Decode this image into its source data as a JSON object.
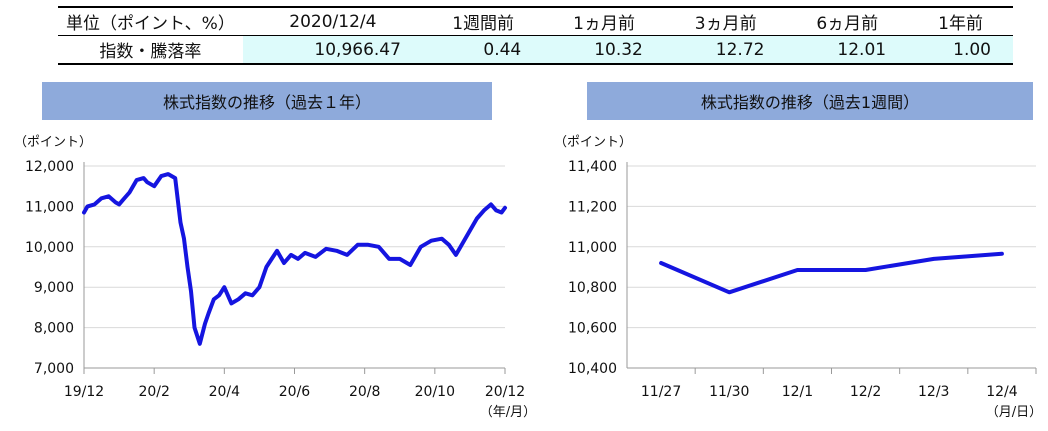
{
  "summary": {
    "headers": [
      "単位（ポイント、%）",
      "2020/12/4",
      "1週間前",
      "1ヵ月前",
      "3ヵ月前",
      "6ヵ月前",
      "1年前"
    ],
    "row_label": "指数・騰落率",
    "values": [
      "10,966.47",
      "0.44",
      "10.32",
      "12.72",
      "12.01",
      "1.00"
    ]
  },
  "left_panel": {
    "title": "株式指数の推移（過去１年）"
  },
  "right_panel": {
    "title": "株式指数の推移（過去1週間）"
  },
  "colors": {
    "line": "#1515e0",
    "title_bg": "#8eaadb",
    "highlight": "#ddfbfb"
  },
  "chart_data": [
    {
      "type": "line",
      "title": "株式指数の推移（過去１年）",
      "ylabel": "（ポイント）",
      "xlabel": "（年/月）",
      "ylim": [
        7000,
        12000
      ],
      "yticks": [
        7000,
        8000,
        9000,
        10000,
        11000,
        12000
      ],
      "ytick_labels": [
        "7,000",
        "8,000",
        "9,000",
        "10,000",
        "11,000",
        "12,000"
      ],
      "xlim": [
        0,
        12
      ],
      "xticks": [
        0,
        2,
        4,
        6,
        8,
        10,
        12
      ],
      "xtick_labels": [
        "19/12",
        "20/2",
        "20/4",
        "20/6",
        "20/8",
        "20/10",
        "20/12"
      ],
      "grid": "horizontal",
      "series": [
        {
          "x": [
            0,
            0.1,
            0.3,
            0.5,
            0.7,
            0.9,
            1.0,
            1.1,
            1.3,
            1.5,
            1.7,
            1.8,
            2.0,
            2.2,
            2.4,
            2.6,
            2.75,
            2.85,
            2.95,
            3.05,
            3.15,
            3.3,
            3.45,
            3.55,
            3.7,
            3.85,
            4.0,
            4.2,
            4.4,
            4.6,
            4.8,
            5.0,
            5.2,
            5.35,
            5.5,
            5.7,
            5.9,
            6.1,
            6.3,
            6.6,
            6.9,
            7.2,
            7.5,
            7.8,
            8.1,
            8.4,
            8.7,
            9.0,
            9.3,
            9.6,
            9.9,
            10.2,
            10.4,
            10.6,
            10.8,
            11.0,
            11.2,
            11.4,
            11.6,
            11.75,
            11.9,
            12.0
          ],
          "y": [
            10850,
            11000,
            11050,
            11200,
            11250,
            11100,
            11050,
            11150,
            11350,
            11650,
            11700,
            11600,
            11500,
            11750,
            11800,
            11700,
            10600,
            10200,
            9500,
            8900,
            8000,
            7600,
            8100,
            8350,
            8700,
            8800,
            9000,
            8600,
            8700,
            8850,
            8800,
            9000,
            9500,
            9700,
            9900,
            9600,
            9800,
            9700,
            9850,
            9750,
            9950,
            9900,
            9800,
            10050,
            10050,
            10000,
            9700,
            9700,
            9550,
            10000,
            10150,
            10200,
            10050,
            9800,
            10100,
            10400,
            10700,
            10900,
            11050,
            10900,
            10850,
            10966
          ]
        }
      ]
    },
    {
      "type": "line",
      "title": "株式指数の推移（過去1週間）",
      "ylabel": "（ポイント）",
      "xlabel": "（月/日）",
      "ylim": [
        10400,
        11400
      ],
      "yticks": [
        10400,
        10600,
        10800,
        11000,
        11200,
        11400
      ],
      "ytick_labels": [
        "10,400",
        "10,600",
        "10,800",
        "11,000",
        "11,200",
        "11,400"
      ],
      "categories": [
        "11/27",
        "11/30",
        "12/1",
        "12/2",
        "12/3",
        "12/4"
      ],
      "grid": "horizontal",
      "series": [
        {
          "values": [
            10920,
            10775,
            10885,
            10885,
            10940,
            10966
          ]
        }
      ]
    }
  ]
}
